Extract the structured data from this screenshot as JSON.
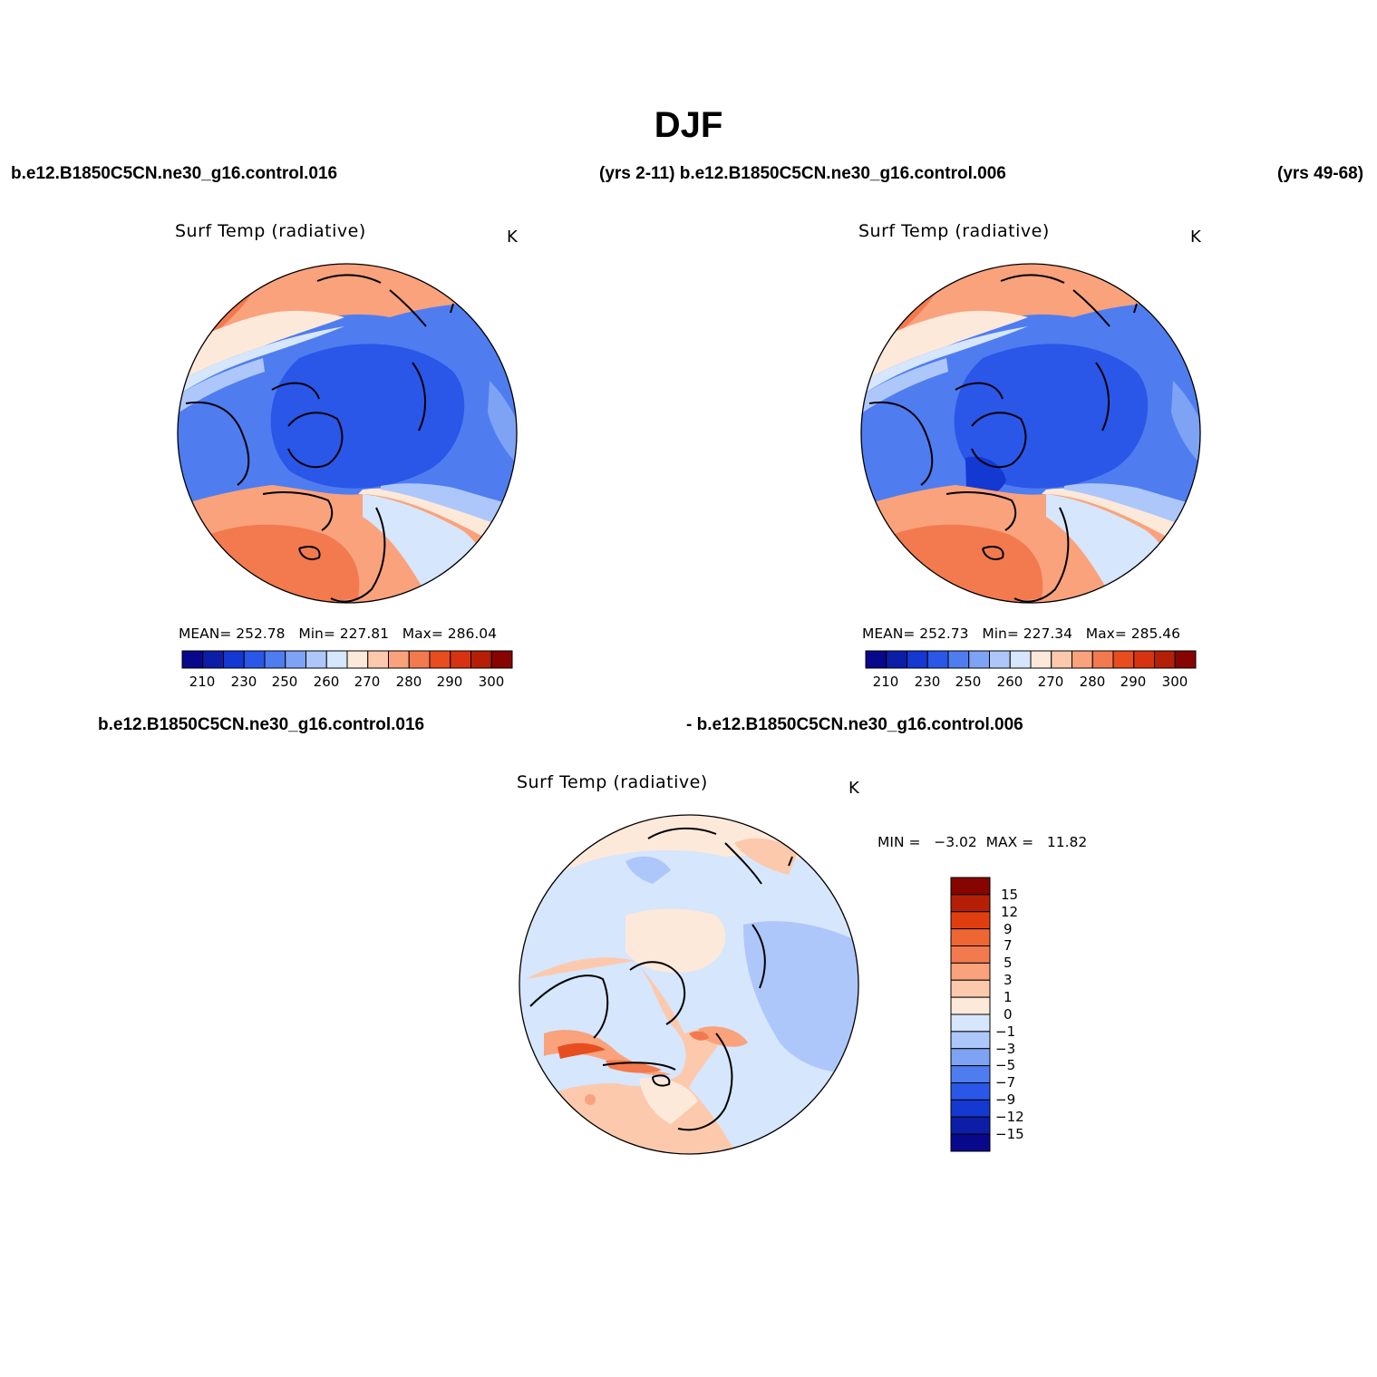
{
  "season": "DJF",
  "header": {
    "case1": "b.e12.B1850C5CN.ne30_g16.control.016",
    "yrs1_case2": "(yrs 2-11) b.e12.B1850C5CN.ne30_g16.control.006",
    "yrs2": "(yrs 49-68)",
    "diff_case1": "b.e12.B1850C5CN.ne30_g16.control.016",
    "diff_case2": "- b.e12.B1850C5CN.ne30_g16.control.006"
  },
  "colors": {
    "mean_scale": [
      "#08088c",
      "#0c1ea8",
      "#1438d2",
      "#2a57e8",
      "#4f7df0",
      "#7ea3f4",
      "#adc7fa",
      "#d6e6fc",
      "#fde9da",
      "#fcc9ad",
      "#f9a27c",
      "#f27a4e",
      "#e84d20",
      "#d83310",
      "#b41f06",
      "#860500"
    ],
    "diff_scale": [
      "#08088c",
      "#0c1ea8",
      "#1438d2",
      "#2a57e8",
      "#4f7df0",
      "#7ea3f4",
      "#adc7fa",
      "#d6e6fc",
      "#fde9da",
      "#fcc9ad",
      "#f9a27c",
      "#f27a4e",
      "#ee6634",
      "#e03e10",
      "#b41f06",
      "#860500"
    ],
    "land_outline": "#000000"
  },
  "chart_data": [
    {
      "type": "heatmap",
      "projection": "north-polar-stereographic",
      "title": "Surf Temp (radiative)",
      "units": "K",
      "stats": {
        "mean_label": "MEAN=",
        "mean": "252.78",
        "min_label": "Min=",
        "min": "227.81",
        "max_label": "Max=",
        "max": "286.04"
      },
      "contour_levels": [
        210,
        220,
        230,
        240,
        250,
        255,
        260,
        265,
        270,
        275,
        280,
        285,
        290,
        295,
        300
      ],
      "colorbar_labels": [
        "210",
        "230",
        "250",
        "260",
        "270",
        "280",
        "290",
        "300"
      ]
    },
    {
      "type": "heatmap",
      "projection": "north-polar-stereographic",
      "title": "Surf Temp (radiative)",
      "units": "K",
      "stats": {
        "mean_label": "MEAN=",
        "mean": "252.73",
        "min_label": "Min=",
        "min": "227.34",
        "max_label": "Max=",
        "max": "285.46"
      },
      "contour_levels": [
        210,
        220,
        230,
        240,
        250,
        255,
        260,
        265,
        270,
        275,
        280,
        285,
        290,
        295,
        300
      ],
      "colorbar_labels": [
        "210",
        "230",
        "250",
        "260",
        "270",
        "280",
        "290",
        "300"
      ]
    },
    {
      "type": "heatmap",
      "projection": "north-polar-stereographic",
      "title": "Surf Temp (radiative)",
      "units": "K",
      "stats": {
        "min_label": "MIN =",
        "min": "−3.02",
        "max_label": "MAX =",
        "max": "11.82"
      },
      "contour_levels": [
        -15,
        -12,
        -9,
        -7,
        -5,
        -3,
        -1,
        0,
        1,
        3,
        5,
        7,
        9,
        12,
        15
      ],
      "colorbar_labels": [
        "15",
        "12",
        "9",
        "7",
        "5",
        "3",
        "1",
        "0",
        "−1",
        "−3",
        "−5",
        "−7",
        "−9",
        "−12",
        "−15"
      ]
    }
  ]
}
